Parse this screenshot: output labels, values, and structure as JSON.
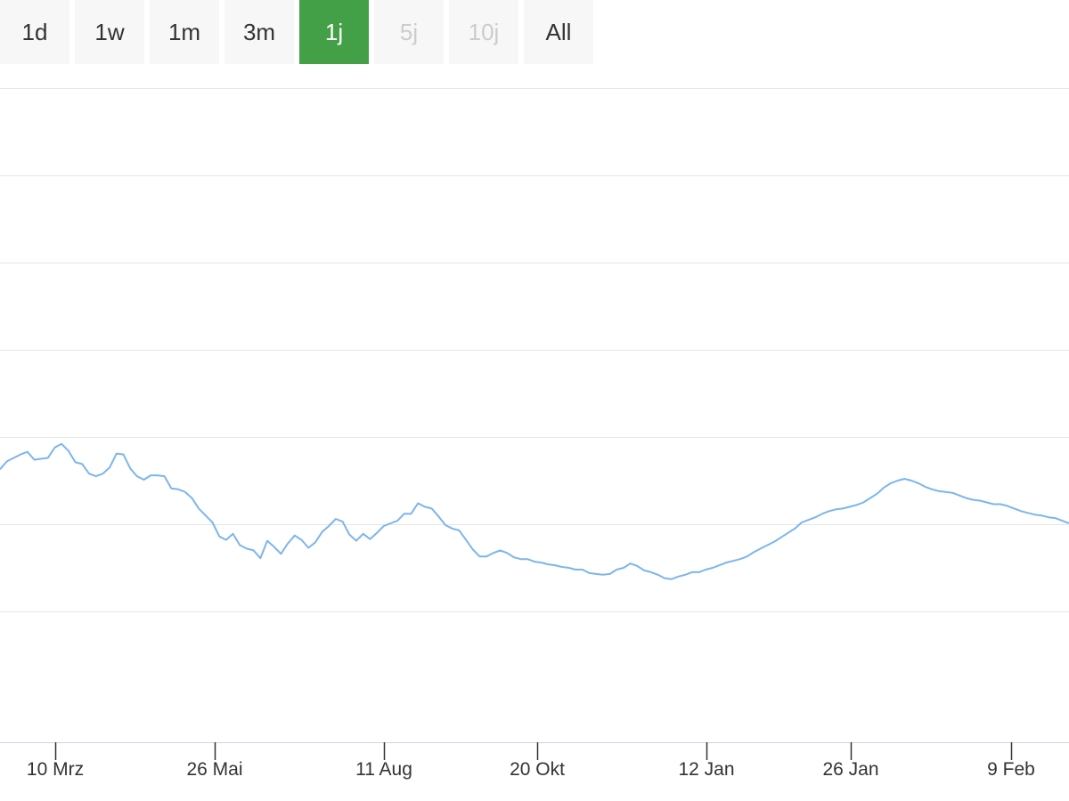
{
  "range_selector": {
    "buttons": [
      {
        "label": "1d",
        "state": "normal"
      },
      {
        "label": "1w",
        "state": "normal"
      },
      {
        "label": "1m",
        "state": "normal"
      },
      {
        "label": "3m",
        "state": "normal"
      },
      {
        "label": "1j",
        "state": "active"
      },
      {
        "label": "5j",
        "state": "disabled"
      },
      {
        "label": "10j",
        "state": "disabled"
      },
      {
        "label": "All",
        "state": "normal"
      }
    ]
  },
  "colors": {
    "line": "#7cb5ec",
    "grid": "#e6e6e6",
    "axis": "#ccd6eb",
    "tick": "#333333",
    "active_button": "#43a047",
    "button_bg": "#f7f7f7",
    "disabled_text": "#cccccc"
  },
  "chart_data": {
    "type": "line",
    "title": "",
    "xlabel": "",
    "ylabel": "",
    "grid": true,
    "x_ticks": [
      "10 Mrz",
      "26 Mai",
      "11 Aug",
      "20 Okt",
      "12 Jan",
      "26 Jan",
      "9 Feb"
    ],
    "y_levels": 8,
    "series": [
      {
        "values": [
          0.63,
          0.72,
          0.76,
          0.8,
          0.83,
          0.74,
          0.75,
          0.76,
          0.88,
          0.92,
          0.84,
          0.71,
          0.69,
          0.58,
          0.55,
          0.58,
          0.65,
          0.81,
          0.8,
          0.64,
          0.55,
          0.51,
          0.56,
          0.56,
          0.55,
          0.41,
          0.4,
          0.37,
          0.3,
          0.18,
          0.1,
          0.02,
          -0.14,
          -0.18,
          -0.11,
          -0.24,
          -0.28,
          -0.3,
          -0.39,
          -0.19,
          -0.26,
          -0.34,
          -0.22,
          -0.13,
          -0.18,
          -0.27,
          -0.21,
          -0.09,
          -0.02,
          0.06,
          0.03,
          -0.12,
          -0.19,
          -0.11,
          -0.17,
          -0.1,
          -0.02,
          0.01,
          0.04,
          0.12,
          0.12,
          0.24,
          0.2,
          0.18,
          0.09,
          -0.01,
          -0.05,
          -0.07,
          -0.18,
          -0.29,
          -0.37,
          -0.37,
          -0.33,
          -0.3,
          -0.33,
          -0.38,
          -0.4,
          -0.4,
          -0.43,
          -0.44,
          -0.46,
          -0.47,
          -0.49,
          -0.5,
          -0.52,
          -0.52,
          -0.56,
          -0.57,
          -0.58,
          -0.57,
          -0.52,
          -0.5,
          -0.45,
          -0.48,
          -0.53,
          -0.55,
          -0.58,
          -0.62,
          -0.63,
          -0.6,
          -0.58,
          -0.55,
          -0.55,
          -0.52,
          -0.5,
          -0.47,
          -0.44,
          -0.42,
          -0.4,
          -0.37,
          -0.32,
          -0.28,
          -0.24,
          -0.2,
          -0.15,
          -0.1,
          -0.05,
          0.02,
          0.05,
          0.08,
          0.12,
          0.15,
          0.17,
          0.18,
          0.2,
          0.22,
          0.25,
          0.3,
          0.35,
          0.42,
          0.47,
          0.5,
          0.52,
          0.5,
          0.47,
          0.43,
          0.4,
          0.38,
          0.37,
          0.36,
          0.33,
          0.3,
          0.28,
          0.27,
          0.25,
          0.23,
          0.23,
          0.21,
          0.18,
          0.15,
          0.13,
          0.11,
          0.1,
          0.08,
          0.07,
          0.04,
          0.01
        ]
      }
    ]
  }
}
